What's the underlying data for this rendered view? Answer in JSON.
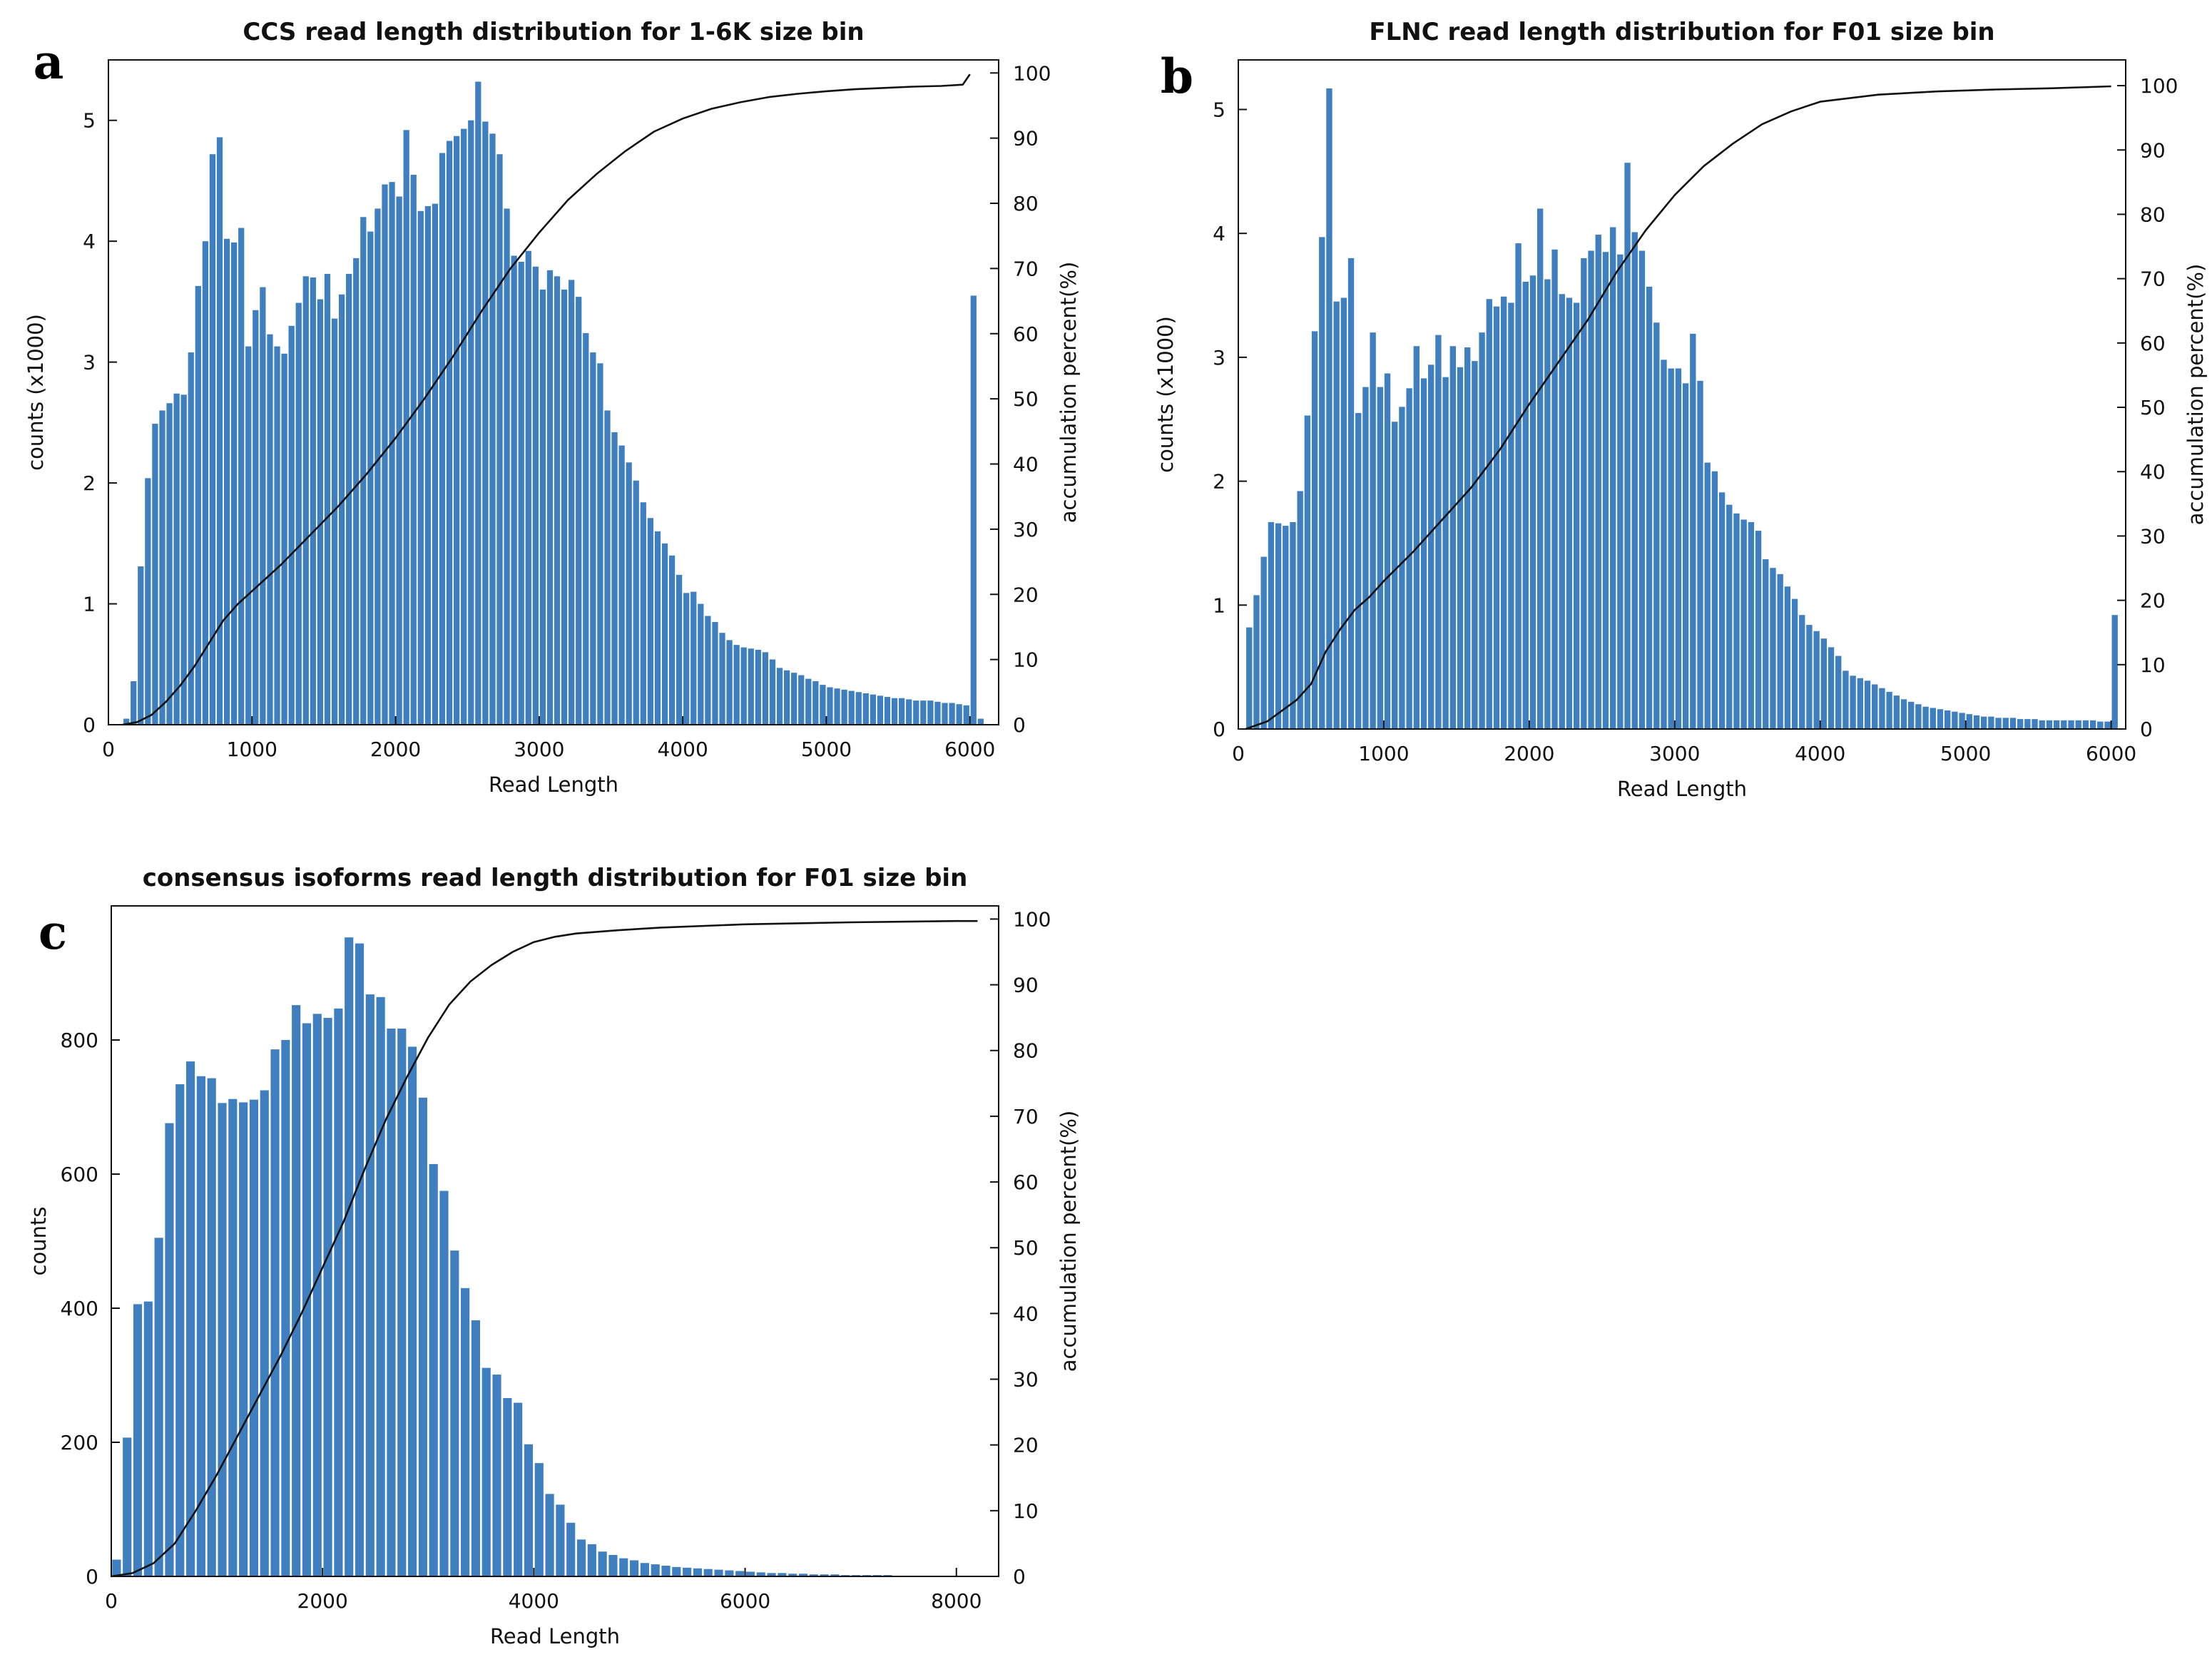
{
  "figure": {
    "colors": {
      "bar": "#3f7fc0",
      "line": "#111111",
      "axis": "#111111"
    }
  },
  "chart_data": [
    {
      "id": "a",
      "panel_letter": "a",
      "type": "bar",
      "title": "CCS read length distribution for 1-6K size bin",
      "xlabel": "Read Length",
      "ylabel": "counts (x1000)",
      "ylabel_right": "accumulation percent(%)",
      "xlim": [
        0,
        6200
      ],
      "ylim": [
        0,
        5.5
      ],
      "y2lim": [
        0,
        102
      ],
      "xticks": [
        0,
        1000,
        2000,
        3000,
        4000,
        5000,
        6000
      ],
      "yticks": [
        0,
        1,
        2,
        3,
        4,
        5
      ],
      "y2ticks": [
        0,
        10,
        20,
        30,
        40,
        50,
        60,
        70,
        80,
        90,
        100
      ],
      "bin_start": 100,
      "bin_width": 50,
      "values": [
        0.05,
        0.36,
        1.31,
        2.04,
        2.49,
        2.6,
        2.66,
        2.74,
        2.73,
        3.08,
        3.63,
        4.0,
        4.72,
        4.86,
        4.02,
        3.99,
        4.11,
        3.13,
        3.43,
        3.62,
        3.23,
        3.13,
        3.07,
        3.3,
        3.49,
        3.71,
        3.7,
        3.52,
        3.73,
        3.36,
        3.56,
        3.73,
        3.86,
        4.2,
        4.08,
        4.27,
        4.47,
        4.49,
        4.37,
        4.92,
        4.55,
        4.25,
        4.29,
        4.31,
        4.73,
        4.83,
        4.87,
        4.93,
        5.0,
        5.32,
        4.99,
        4.89,
        4.72,
        4.27,
        3.88,
        3.83,
        3.92,
        3.79,
        3.6,
        3.76,
        3.71,
        3.6,
        3.68,
        3.54,
        3.24,
        3.08,
        2.99,
        2.6,
        2.42,
        2.31,
        2.17,
        2.02,
        1.84,
        1.71,
        1.6,
        1.5,
        1.4,
        1.24,
        1.09,
        1.1,
        1.0,
        0.9,
        0.85,
        0.76,
        0.7,
        0.66,
        0.64,
        0.63,
        0.62,
        0.6,
        0.54,
        0.47,
        0.45,
        0.43,
        0.41,
        0.38,
        0.36,
        0.33,
        0.31,
        0.3,
        0.29,
        0.28,
        0.27,
        0.26,
        0.25,
        0.24,
        0.23,
        0.22,
        0.22,
        0.21,
        0.2,
        0.2,
        0.2,
        0.19,
        0.18,
        0.18,
        0.17,
        0.16,
        3.55,
        0.05
      ],
      "cumulative_curve": [
        [
          100,
          0
        ],
        [
          200,
          0.4
        ],
        [
          300,
          1.5
        ],
        [
          400,
          3.5
        ],
        [
          500,
          6
        ],
        [
          600,
          9
        ],
        [
          700,
          12.5
        ],
        [
          800,
          16
        ],
        [
          900,
          18.5
        ],
        [
          1000,
          20.5
        ],
        [
          1200,
          24.5
        ],
        [
          1400,
          29
        ],
        [
          1600,
          33.5
        ],
        [
          1800,
          38.5
        ],
        [
          2000,
          44
        ],
        [
          2200,
          50
        ],
        [
          2400,
          56.5
        ],
        [
          2600,
          63.5
        ],
        [
          2800,
          70
        ],
        [
          3000,
          75.5
        ],
        [
          3200,
          80.5
        ],
        [
          3400,
          84.5
        ],
        [
          3600,
          88
        ],
        [
          3800,
          91
        ],
        [
          4000,
          93
        ],
        [
          4200,
          94.5
        ],
        [
          4400,
          95.5
        ],
        [
          4600,
          96.3
        ],
        [
          4800,
          96.8
        ],
        [
          5000,
          97.2
        ],
        [
          5200,
          97.5
        ],
        [
          5400,
          97.7
        ],
        [
          5600,
          97.9
        ],
        [
          5800,
          98
        ],
        [
          5950,
          98.2
        ],
        [
          6000,
          99.8
        ]
      ]
    },
    {
      "id": "b",
      "panel_letter": "b",
      "type": "bar",
      "title": "FLNC read length distribution for F01 size bin",
      "xlabel": "Read Length",
      "ylabel": "counts (x1000)",
      "ylabel_right": "accumulation percent(%)",
      "xlim": [
        0,
        6100
      ],
      "ylim": [
        0,
        5.4
      ],
      "y2lim": [
        0,
        104
      ],
      "xticks": [
        0,
        1000,
        2000,
        3000,
        4000,
        5000,
        6000
      ],
      "yticks": [
        0,
        1,
        2,
        3,
        4,
        5
      ],
      "y2ticks": [
        0,
        10,
        20,
        30,
        40,
        50,
        60,
        70,
        80,
        90,
        100
      ],
      "bin_start": 50,
      "bin_width": 50,
      "values": [
        0.82,
        1.08,
        1.39,
        1.67,
        1.66,
        1.64,
        1.67,
        1.92,
        2.53,
        3.21,
        3.97,
        5.17,
        3.45,
        3.48,
        3.8,
        2.55,
        2.76,
        3.2,
        2.76,
        2.87,
        2.48,
        2.6,
        2.75,
        3.09,
        2.83,
        2.94,
        3.18,
        2.84,
        3.09,
        2.92,
        3.08,
        2.97,
        3.2,
        3.47,
        3.41,
        3.49,
        3.44,
        3.92,
        3.61,
        3.66,
        4.2,
        3.63,
        3.87,
        3.51,
        3.48,
        3.44,
        3.8,
        3.86,
        3.99,
        3.85,
        4.05,
        3.83,
        4.57,
        4.01,
        3.86,
        3.57,
        3.28,
        2.98,
        2.91,
        2.91,
        2.79,
        3.19,
        2.81,
        2.15,
        2.08,
        1.91,
        1.81,
        1.74,
        1.69,
        1.67,
        1.6,
        1.37,
        1.3,
        1.25,
        1.15,
        1.05,
        0.92,
        0.84,
        0.79,
        0.73,
        0.66,
        0.59,
        0.47,
        0.43,
        0.41,
        0.39,
        0.36,
        0.33,
        0.3,
        0.27,
        0.24,
        0.22,
        0.2,
        0.18,
        0.17,
        0.16,
        0.15,
        0.14,
        0.13,
        0.12,
        0.11,
        0.1,
        0.1,
        0.09,
        0.09,
        0.09,
        0.08,
        0.08,
        0.08,
        0.07,
        0.07,
        0.07,
        0.07,
        0.07,
        0.07,
        0.07,
        0.07,
        0.06,
        0.06,
        0.92
      ],
      "cumulative_curve": [
        [
          50,
          0
        ],
        [
          200,
          1.2
        ],
        [
          400,
          4.5
        ],
        [
          500,
          7
        ],
        [
          600,
          12
        ],
        [
          700,
          15.5
        ],
        [
          800,
          18.5
        ],
        [
          900,
          20.5
        ],
        [
          1000,
          23
        ],
        [
          1200,
          27.5
        ],
        [
          1400,
          32.5
        ],
        [
          1600,
          37.5
        ],
        [
          1800,
          43.5
        ],
        [
          2000,
          50.5
        ],
        [
          2200,
          57
        ],
        [
          2400,
          63.5
        ],
        [
          2600,
          71
        ],
        [
          2800,
          77.5
        ],
        [
          3000,
          83
        ],
        [
          3200,
          87.5
        ],
        [
          3400,
          91
        ],
        [
          3600,
          94
        ],
        [
          3800,
          96
        ],
        [
          4000,
          97.5
        ],
        [
          4400,
          98.6
        ],
        [
          4800,
          99.1
        ],
        [
          5200,
          99.4
        ],
        [
          5600,
          99.6
        ],
        [
          6000,
          99.9
        ]
      ]
    },
    {
      "id": "c",
      "panel_letter": "c",
      "type": "bar",
      "title": "consensus isoforms read length distribution for F01 size bin",
      "xlabel": "Read Length",
      "ylabel": "counts",
      "ylabel_right": "accumulation percent(%)",
      "xlim": [
        0,
        8400
      ],
      "ylim": [
        0,
        1000
      ],
      "y2lim": [
        0,
        102
      ],
      "xticks": [
        0,
        2000,
        4000,
        6000,
        8000
      ],
      "yticks": [
        0,
        200,
        400,
        600,
        800
      ],
      "y2ticks": [
        0,
        10,
        20,
        30,
        40,
        50,
        60,
        70,
        80,
        90,
        100
      ],
      "bin_start": 0,
      "bin_width": 100,
      "values": [
        25,
        207,
        406,
        410,
        505,
        676,
        734,
        768,
        746,
        743,
        706,
        712,
        707,
        711,
        725,
        786,
        800,
        852,
        825,
        839,
        833,
        847,
        953,
        944,
        868,
        864,
        817,
        817,
        790,
        714,
        615,
        575,
        486,
        430,
        382,
        311,
        301,
        266,
        259,
        197,
        169,
        123,
        107,
        80,
        55,
        48,
        37,
        32,
        27,
        24,
        20,
        18,
        16,
        14,
        13,
        12,
        11,
        10,
        9,
        8,
        7,
        6,
        5,
        5,
        4,
        4,
        3,
        3,
        3,
        2,
        2,
        2,
        2,
        2,
        1,
        1,
        1,
        1,
        1,
        1,
        1,
        1
      ],
      "cumulative_curve": [
        [
          0,
          0
        ],
        [
          200,
          0.5
        ],
        [
          400,
          2
        ],
        [
          600,
          5
        ],
        [
          800,
          10
        ],
        [
          1000,
          15.5
        ],
        [
          1200,
          21.5
        ],
        [
          1400,
          27.5
        ],
        [
          1600,
          33.5
        ],
        [
          1800,
          40
        ],
        [
          2000,
          47
        ],
        [
          2200,
          54
        ],
        [
          2400,
          62
        ],
        [
          2600,
          69.5
        ],
        [
          2800,
          76
        ],
        [
          3000,
          82
        ],
        [
          3200,
          87
        ],
        [
          3400,
          90.5
        ],
        [
          3600,
          93
        ],
        [
          3800,
          95
        ],
        [
          4000,
          96.5
        ],
        [
          4200,
          97.3
        ],
        [
          4400,
          97.8
        ],
        [
          4800,
          98.3
        ],
        [
          5200,
          98.7
        ],
        [
          6000,
          99.2
        ],
        [
          7000,
          99.5
        ],
        [
          8000,
          99.7
        ],
        [
          8200,
          99.7
        ]
      ]
    }
  ]
}
